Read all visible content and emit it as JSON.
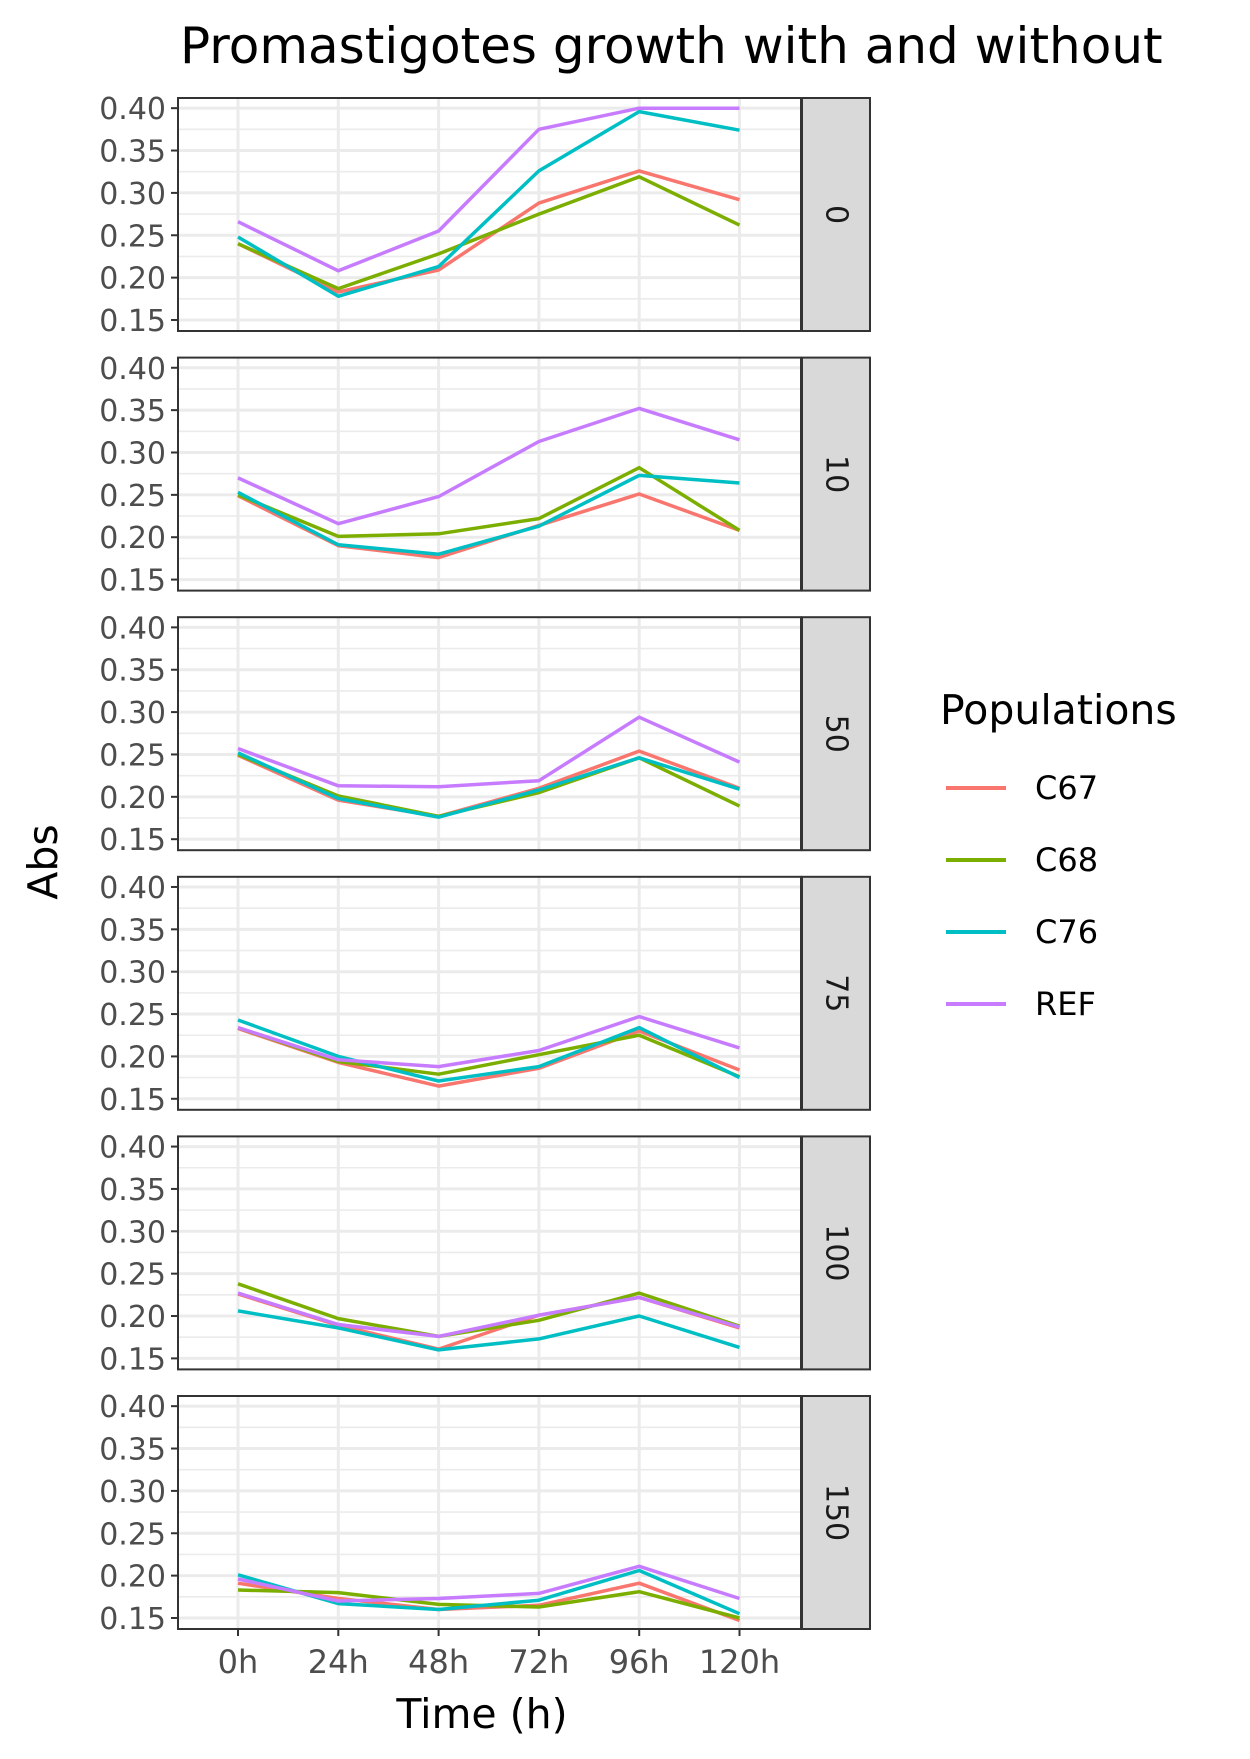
{
  "chart_data": {
    "type": "line",
    "title": "Promastigotes growth with and without",
    "xlabel": "Time (h)",
    "ylabel": "Abs",
    "x_categories": [
      "0h",
      "24h",
      "48h",
      "72h",
      "96h",
      "120h"
    ],
    "y_ticks": [
      "0.15",
      "0.20",
      "0.25",
      "0.30",
      "0.35",
      "0.40"
    ],
    "ylim": [
      0.137,
      0.412
    ],
    "grid": true,
    "legend": {
      "title": "Populations",
      "placement": "right"
    },
    "series_colors": {
      "C67": "#F8766D",
      "C68": "#7CAE00",
      "C76": "#00BFC4",
      "REF": "#C77CFF"
    },
    "facets": [
      {
        "label": "0",
        "series": [
          {
            "name": "C67",
            "values": [
              0.24,
              0.183,
              0.209,
              0.288,
              0.326,
              0.292
            ]
          },
          {
            "name": "C68",
            "values": [
              0.24,
              0.187,
              0.228,
              0.275,
              0.319,
              0.262
            ]
          },
          {
            "name": "C76",
            "values": [
              0.248,
              0.178,
              0.213,
              0.326,
              0.396,
              0.374
            ]
          },
          {
            "name": "REF",
            "values": [
              0.266,
              0.208,
              0.255,
              0.375,
              0.4,
              0.4
            ]
          }
        ]
      },
      {
        "label": "10",
        "series": [
          {
            "name": "C67",
            "values": [
              0.249,
              0.19,
              0.176,
              0.214,
              0.251,
              0.208
            ]
          },
          {
            "name": "C68",
            "values": [
              0.25,
              0.201,
              0.204,
              0.222,
              0.282,
              0.208
            ]
          },
          {
            "name": "C76",
            "values": [
              0.253,
              0.191,
              0.18,
              0.213,
              0.273,
              0.264
            ]
          },
          {
            "name": "REF",
            "values": [
              0.27,
              0.216,
              0.248,
              0.313,
              0.352,
              0.315
            ]
          }
        ]
      },
      {
        "label": "50",
        "series": [
          {
            "name": "C67",
            "values": [
              0.249,
              0.196,
              0.177,
              0.21,
              0.254,
              0.21
            ]
          },
          {
            "name": "C68",
            "values": [
              0.25,
              0.201,
              0.177,
              0.205,
              0.246,
              0.189
            ]
          },
          {
            "name": "C76",
            "values": [
              0.252,
              0.198,
              0.176,
              0.208,
              0.246,
              0.209
            ]
          },
          {
            "name": "REF",
            "values": [
              0.257,
              0.213,
              0.212,
              0.219,
              0.294,
              0.241
            ]
          }
        ]
      },
      {
        "label": "75",
        "series": [
          {
            "name": "C67",
            "values": [
              0.233,
              0.193,
              0.165,
              0.186,
              0.23,
              0.184
            ]
          },
          {
            "name": "C68",
            "values": [
              0.234,
              0.194,
              0.179,
              0.202,
              0.225,
              0.176
            ]
          },
          {
            "name": "C76",
            "values": [
              0.243,
              0.2,
              0.171,
              0.188,
              0.234,
              0.175
            ]
          },
          {
            "name": "REF",
            "values": [
              0.234,
              0.196,
              0.188,
              0.207,
              0.247,
              0.21
            ]
          }
        ]
      },
      {
        "label": "100",
        "series": [
          {
            "name": "C67",
            "values": [
              0.226,
              0.189,
              0.161,
              0.201,
              0.222,
              0.186
            ]
          },
          {
            "name": "C68",
            "values": [
              0.238,
              0.197,
              0.176,
              0.195,
              0.227,
              0.188
            ]
          },
          {
            "name": "C76",
            "values": [
              0.206,
              0.186,
              0.16,
              0.173,
              0.2,
              0.163
            ]
          },
          {
            "name": "REF",
            "values": [
              0.227,
              0.19,
              0.176,
              0.201,
              0.222,
              0.187
            ]
          }
        ]
      },
      {
        "label": "150",
        "series": [
          {
            "name": "C67",
            "values": [
              0.191,
              0.173,
              0.16,
              0.165,
              0.191,
              0.147
            ]
          },
          {
            "name": "C68",
            "values": [
              0.183,
              0.18,
              0.166,
              0.163,
              0.181,
              0.15
            ]
          },
          {
            "name": "C76",
            "values": [
              0.201,
              0.167,
              0.16,
              0.171,
              0.206,
              0.155
            ]
          },
          {
            "name": "REF",
            "values": [
              0.196,
              0.17,
              0.173,
              0.179,
              0.211,
              0.173
            ]
          }
        ]
      }
    ]
  }
}
